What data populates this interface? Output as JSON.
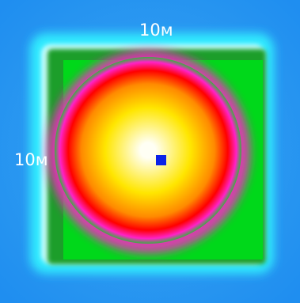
{
  "labels": {
    "top_dimension": "10м",
    "left_dimension": "10м"
  },
  "colors": {
    "outer_blue": "#1f8ef0",
    "outer_blue_light": "#3aa6f2",
    "cyan": "#33f0ff",
    "pale_cyan": "#dcffff",
    "green": "#00d81a",
    "dark_green": "#1a9e2a",
    "magenta": "#ff22c8",
    "red": "#ff0000",
    "orange": "#ff8a00",
    "yellow": "#ffe600",
    "center_white": "#fffff4",
    "marker_blue": "#0b22e8"
  },
  "legend_scale": [
    "center_white",
    "yellow",
    "orange",
    "red",
    "magenta",
    "green",
    "cyan",
    "outer_blue"
  ]
}
